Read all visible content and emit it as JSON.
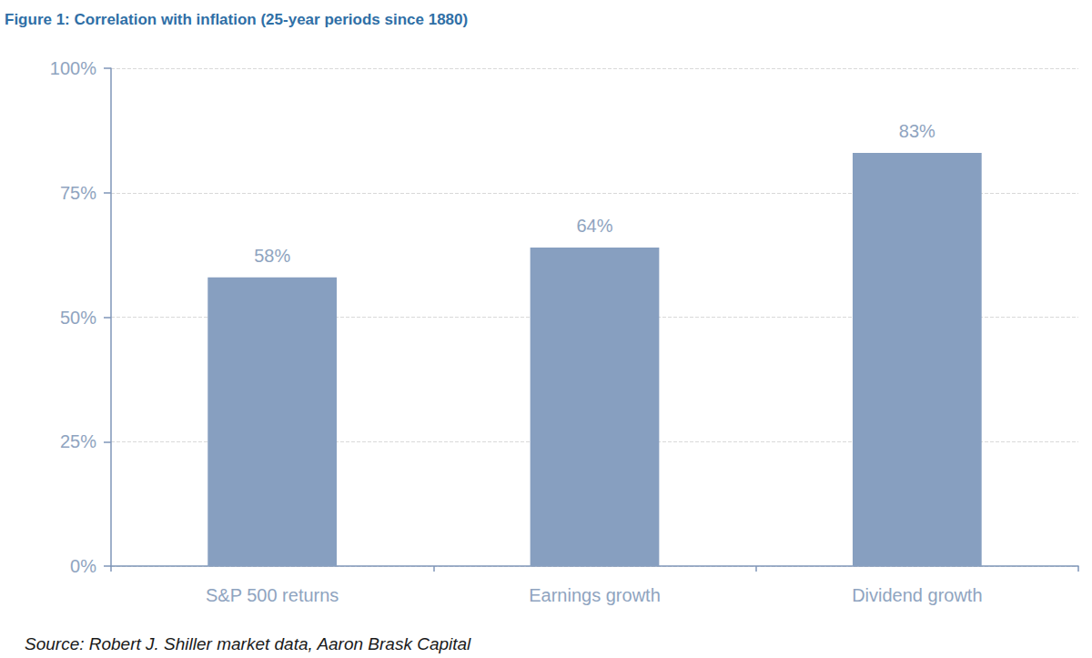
{
  "chart_data": {
    "type": "bar",
    "title": "Figure 1: Correlation with inflation (25-year periods since 1880)",
    "source": "Source: Robert J. Shiller market data, Aaron Brask Capital",
    "categories": [
      "S&P 500 returns",
      "Earnings growth",
      "Dividend growth"
    ],
    "values": [
      58,
      64,
      83
    ],
    "value_labels": [
      "58%",
      "64%",
      "83%"
    ],
    "data_labels": true,
    "color": "#879fc0",
    "ylim": [
      0,
      100
    ],
    "yticks": [
      {
        "value": 0,
        "label": "0%"
      },
      {
        "value": 25,
        "label": "25%"
      },
      {
        "value": 50,
        "label": "50%"
      },
      {
        "value": 75,
        "label": "75%"
      },
      {
        "value": 100,
        "label": "100%"
      }
    ],
    "grid": true
  }
}
